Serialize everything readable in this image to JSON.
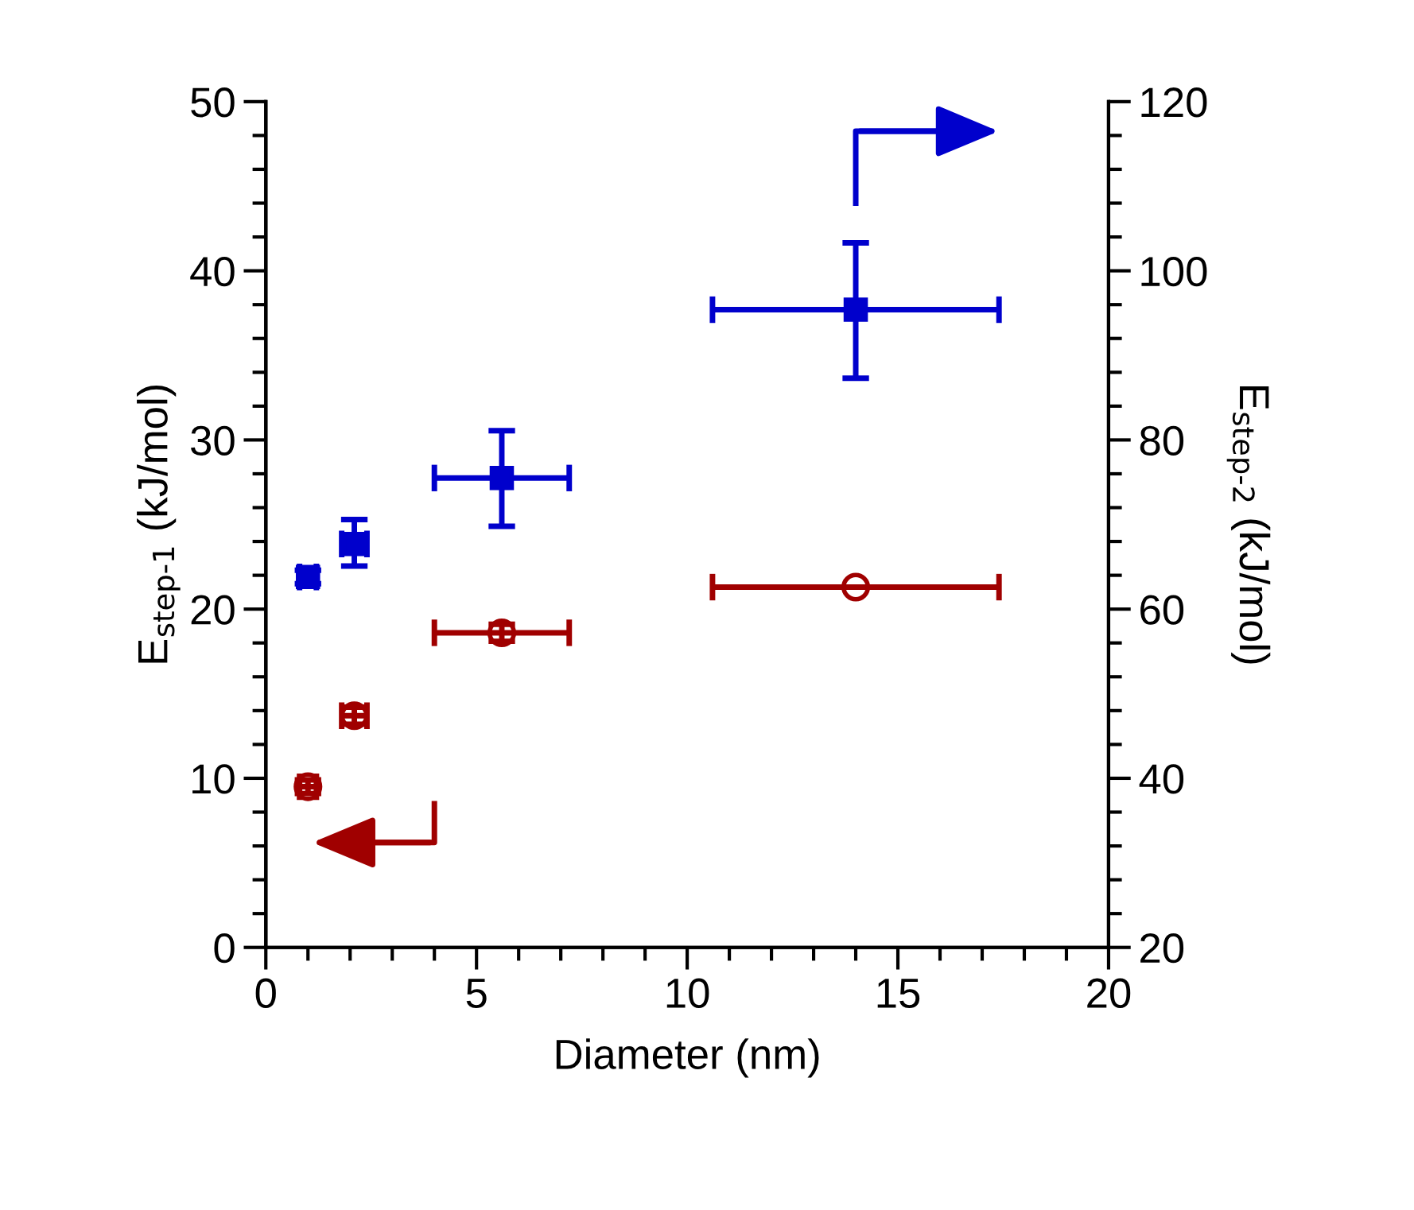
{
  "chart_data": {
    "type": "scatter",
    "xlabel": "Diameter (nm)",
    "ylabel": "E$_{step-1}$ (kJ/mol)",
    "y2label": "E$_{step-2}$ (kJ/mol)",
    "xlim": [
      0,
      20
    ],
    "xticks": [
      0,
      {
        "value": 1,
        "label": null
      },
      {
        "value": 2,
        "label": null
      },
      {
        "value": 3,
        "label": null
      },
      {
        "value": 4,
        "label": null
      },
      5,
      {
        "value": 6,
        "label": null
      },
      {
        "value": 7,
        "label": null
      },
      {
        "value": 8,
        "label": null
      },
      {
        "value": 9,
        "label": null
      },
      10,
      {
        "value": 11,
        "label": null
      },
      {
        "value": 12,
        "label": null
      },
      {
        "value": 13,
        "label": null
      },
      {
        "value": 14,
        "label": null
      },
      15,
      {
        "value": 16,
        "label": null
      },
      {
        "value": 17,
        "label": null
      },
      {
        "value": 18,
        "label": null
      },
      {
        "value": 19,
        "label": null
      },
      20
    ],
    "ylim": [
      0,
      50
    ],
    "yticks": [
      0,
      {
        "value": 2,
        "label": null
      },
      {
        "value": 4,
        "label": null
      },
      {
        "value": 6,
        "label": null
      },
      {
        "value": 8,
        "label": null
      },
      10,
      {
        "value": 12,
        "label": null
      },
      {
        "value": 14,
        "label": null
      },
      {
        "value": 16,
        "label": null
      },
      {
        "value": 18,
        "label": null
      },
      20,
      {
        "value": 22,
        "label": null
      },
      {
        "value": 24,
        "label": null
      },
      {
        "value": 26,
        "label": null
      },
      {
        "value": 28,
        "label": null
      },
      30,
      {
        "value": 32,
        "label": null
      },
      {
        "value": 34,
        "label": null
      },
      {
        "value": 36,
        "label": null
      },
      {
        "value": 38,
        "label": null
      },
      40,
      {
        "value": 42,
        "label": null
      },
      {
        "value": 44,
        "label": null
      },
      {
        "value": 46,
        "label": null
      },
      {
        "value": 48,
        "label": null
      },
      50
    ],
    "y2lim": [
      20,
      120
    ],
    "y2ticks": [
      20,
      {
        "value": 24,
        "label": null
      },
      {
        "value": 28,
        "label": null
      },
      {
        "value": 32,
        "label": null
      },
      {
        "value": 36,
        "label": null
      },
      40,
      {
        "value": 44,
        "label": null
      },
      {
        "value": 48,
        "label": null
      },
      {
        "value": 52,
        "label": null
      },
      {
        "value": 56,
        "label": null
      },
      60,
      {
        "value": 64,
        "label": null
      },
      {
        "value": 68,
        "label": null
      },
      {
        "value": 72,
        "label": null
      },
      {
        "value": 76,
        "label": null
      },
      80,
      {
        "value": 84,
        "label": null
      },
      {
        "value": 88,
        "label": null
      },
      {
        "value": 92,
        "label": null
      },
      {
        "value": 96,
        "label": null
      },
      100,
      {
        "value": 104,
        "label": null
      },
      {
        "value": 108,
        "label": null
      },
      {
        "value": 112,
        "label": null
      },
      {
        "value": 116,
        "label": null
      },
      120
    ],
    "grid": false,
    "series": [
      {
        "color": "#a00000",
        "marker": "circle",
        "x": [
          1.0,
          2.1,
          5.6,
          14.0
        ],
        "values": [
          9.5,
          13.7,
          18.6,
          21.3
        ],
        "errors": [
          0.4,
          0.5,
          0.5,
          null
        ],
        "xerrors": [
          0.2,
          0.3,
          [
            4.0,
            7.2
          ],
          [
            10.6,
            17.4
          ]
        ]
      },
      {
        "color": "#0000cc",
        "marker": "square",
        "axis": "y2",
        "x": [
          1.0,
          2.1,
          5.6,
          14.0
        ],
        "values": [
          63.8,
          67.7,
          75.5,
          95.4
        ],
        "errors": [
          0.8,
          [
            65.1,
            70.6
          ],
          [
            69.8,
            81.1
          ],
          [
            87.3,
            103.3
          ]
        ],
        "xerrors": [
          0.2,
          0.3,
          [
            4.0,
            7.2
          ],
          [
            10.6,
            17.4
          ]
        ]
      }
    ]
  }
}
